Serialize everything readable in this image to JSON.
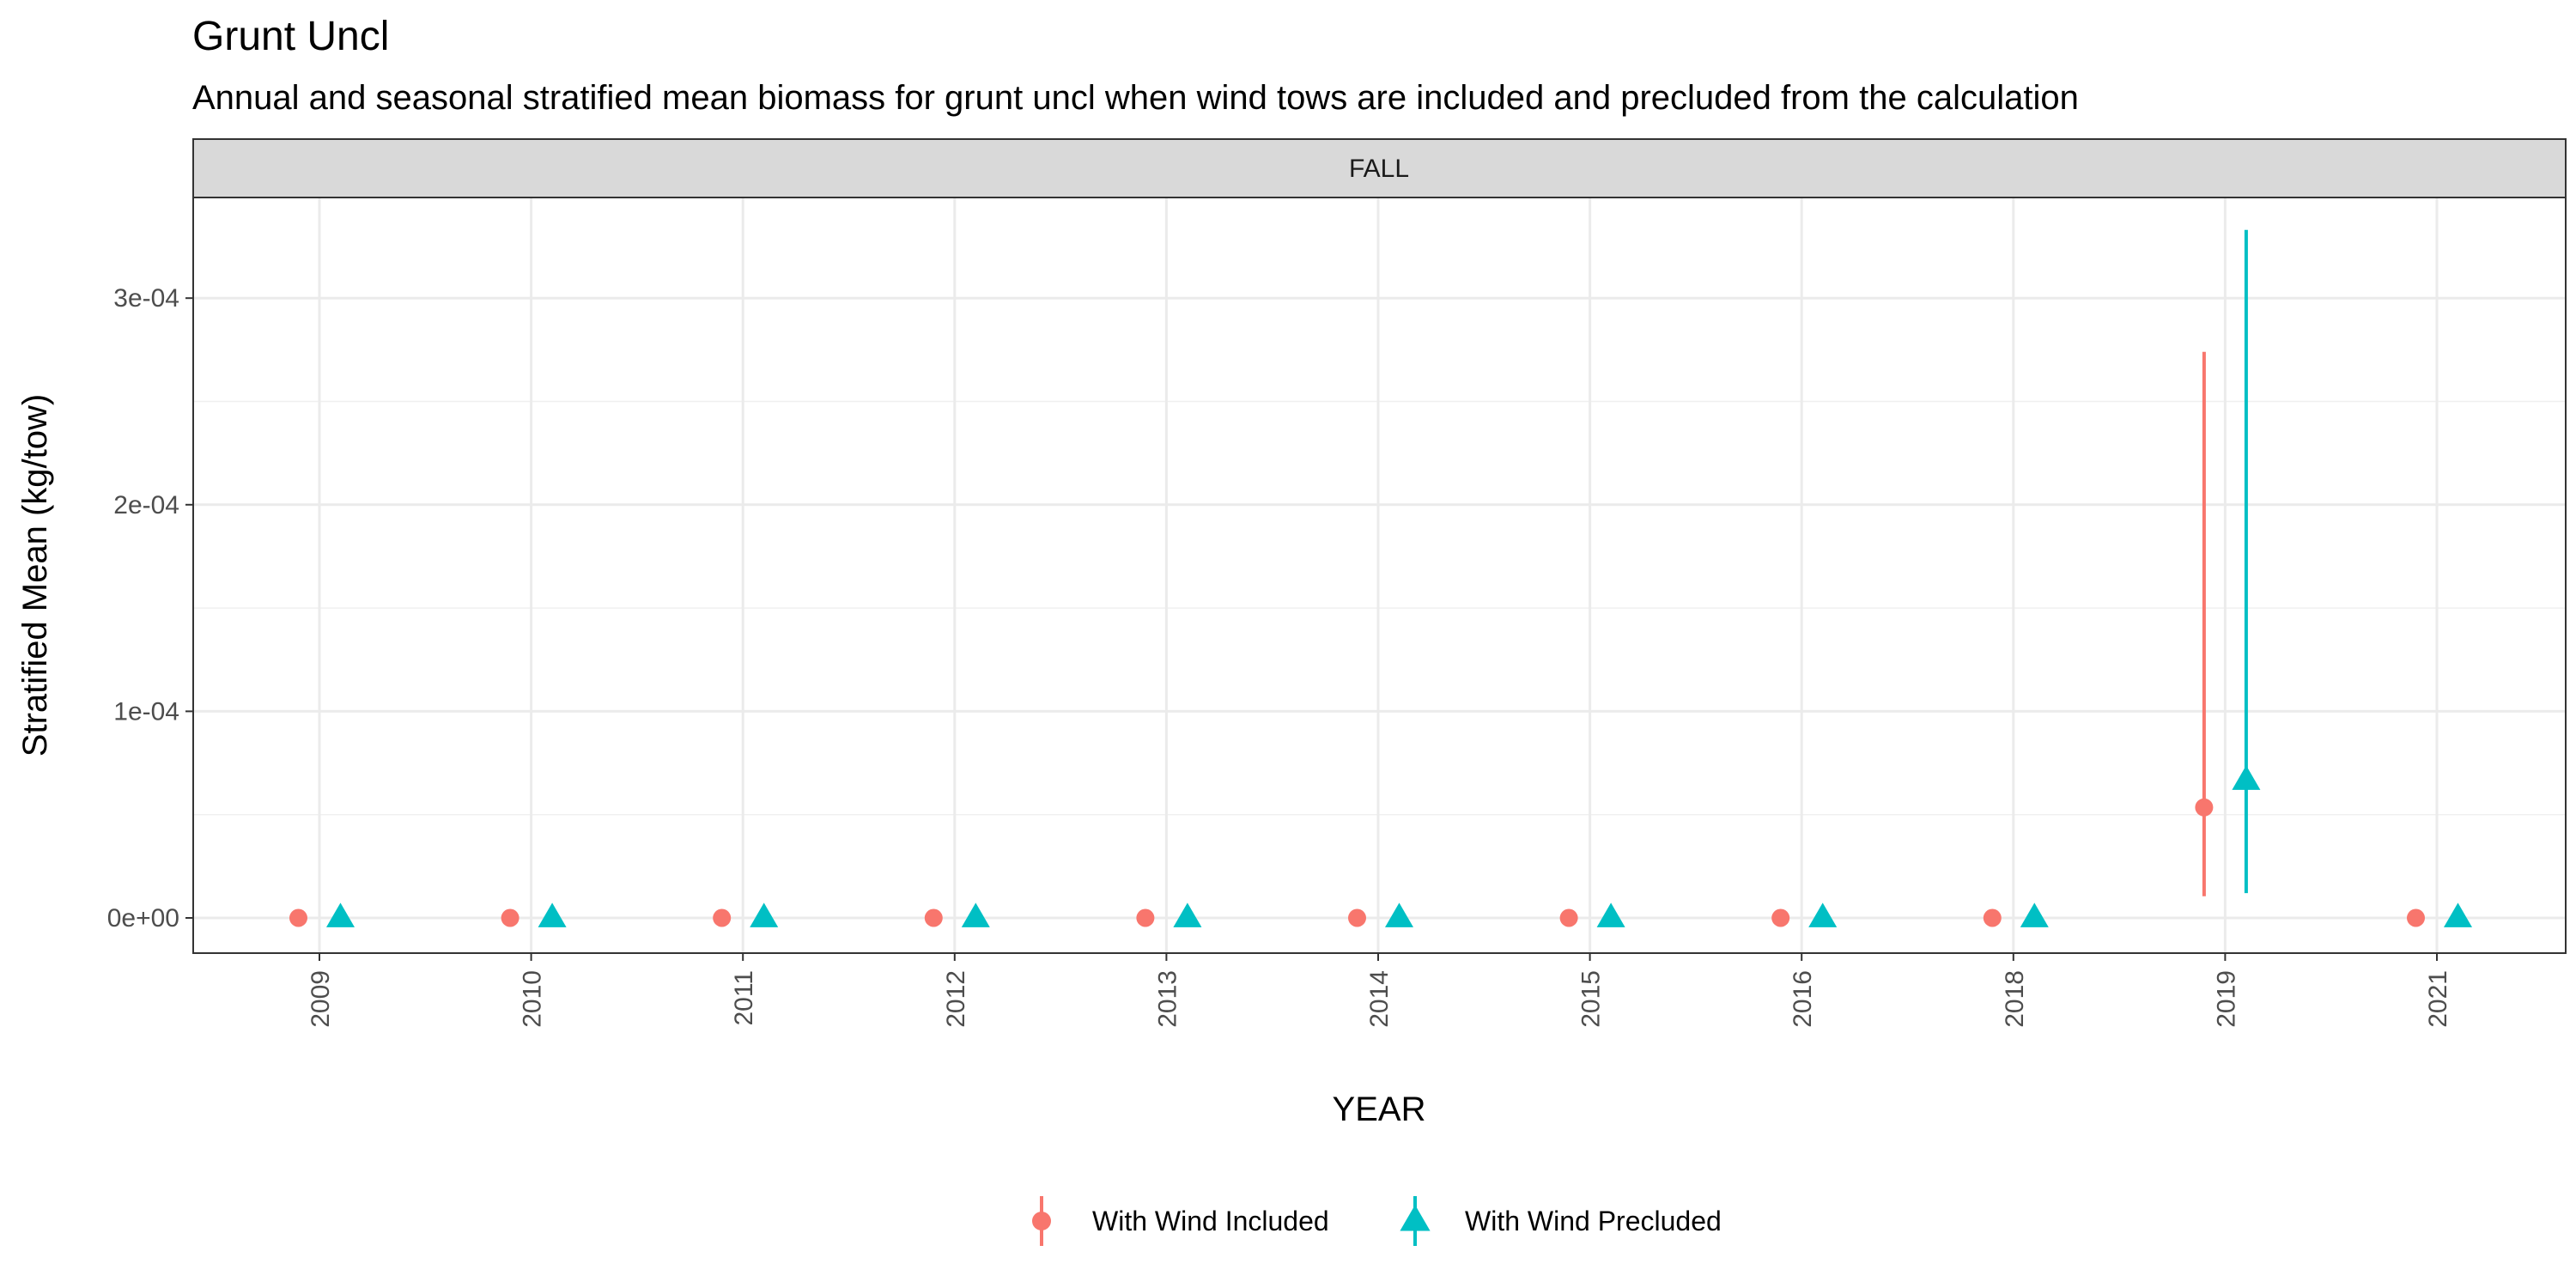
{
  "chart_data": {
    "type": "scatter",
    "title": "Grunt Uncl",
    "subtitle": "Annual and seasonal stratified mean biomass for grunt uncl when wind tows are included and precluded from the calculation",
    "facet": "FALL",
    "xlabel": "YEAR",
    "ylabel": "Stratified Mean (kg/tow)",
    "categories": [
      "2009",
      "2010",
      "2011",
      "2012",
      "2013",
      "2014",
      "2015",
      "2016",
      "2018",
      "2019",
      "2021"
    ],
    "ylim": [
      -1.65e-05,
      0.000348
    ],
    "y_ticks": [
      0,
      0.0001,
      0.0002,
      0.0003
    ],
    "y_tick_labels": [
      "0e+00",
      "1e-04",
      "2e-04",
      "3e-04"
    ],
    "grid": true,
    "legend_position": "bottom",
    "series": [
      {
        "name": "With Wind Included",
        "color": "#F8766D",
        "shape": "circle",
        "values": [
          0,
          0,
          0,
          0,
          0,
          0,
          0,
          0,
          0,
          5.35e-05,
          0
        ],
        "lower": [
          null,
          null,
          null,
          null,
          null,
          null,
          null,
          null,
          null,
          1.05e-05,
          null
        ],
        "upper": [
          null,
          null,
          null,
          null,
          null,
          null,
          null,
          null,
          null,
          0.000274,
          null
        ]
      },
      {
        "name": "With Wind Precluded",
        "color": "#00BFC4",
        "shape": "triangle",
        "values": [
          0,
          0,
          0,
          0,
          0,
          0,
          0,
          0,
          0,
          6.65e-05,
          0
        ],
        "lower": [
          null,
          null,
          null,
          null,
          null,
          null,
          null,
          null,
          null,
          1.2e-05,
          null
        ],
        "upper": [
          null,
          null,
          null,
          null,
          null,
          null,
          null,
          null,
          null,
          0.000333,
          null
        ]
      }
    ]
  }
}
